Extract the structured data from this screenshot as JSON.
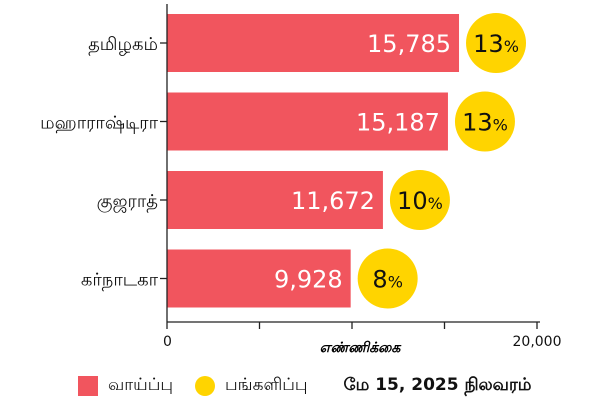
{
  "chart_data": {
    "type": "bar",
    "orientation": "horizontal",
    "categories": [
      "தமிழகம்",
      "மஹாராஷ்டிரா",
      "குஜராத்",
      "கர்நாடகா"
    ],
    "series": [
      {
        "name": "வாய்ப்பு",
        "values": [
          15785,
          15187,
          11672,
          9928
        ],
        "labels": [
          "15,785",
          "15,187",
          "11,672",
          "9,928"
        ],
        "color": "#f1555e"
      },
      {
        "name": "பங்களிப்பு",
        "values": [
          13,
          13,
          10,
          8
        ],
        "labels": [
          "13",
          "13",
          "10",
          "8"
        ],
        "unit": "%",
        "color": "#ffd400"
      }
    ],
    "xlim": [
      0,
      20000
    ],
    "x_tick_labels": [
      "0",
      "20,000"
    ],
    "xlabel": "எண்ணிக்கை",
    "ylabel": "",
    "grid": false,
    "legend": "bottom",
    "note": "மே 15, 2025 நிலவரம்"
  }
}
